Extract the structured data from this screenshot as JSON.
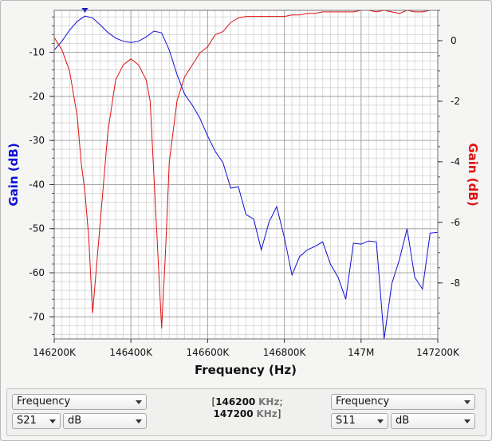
{
  "chart_data": {
    "type": "line",
    "xlabel": "Frequency (Hz)",
    "ylabel_left": "Gain (dB)",
    "ylabel_right": "Gain (dB)",
    "x_ticks": [
      146200,
      146400,
      146600,
      146800,
      147000,
      147200
    ],
    "x_tick_labels": [
      "146200K",
      "146400K",
      "146600K",
      "146800K",
      "147M",
      "147200K"
    ],
    "xlim": [
      146200,
      147200
    ],
    "y_left_ticks": [
      -10,
      -20,
      -30,
      -40,
      -50,
      -60,
      -70
    ],
    "ylim_left": [
      -75,
      -0.5
    ],
    "y_right_ticks": [
      0,
      -2,
      -4,
      -6,
      -8
    ],
    "ylim_right": [
      -9.85,
      1.0
    ],
    "grid": true,
    "marker": {
      "series": "S21",
      "x": 146280
    },
    "series": [
      {
        "name": "S21",
        "axis": "left",
        "color": "#1010d8",
        "x": [
          146200,
          146220,
          146240,
          146260,
          146280,
          146300,
          146320,
          146340,
          146360,
          146380,
          146400,
          146420,
          146440,
          146460,
          146480,
          146500,
          146520,
          146540,
          146560,
          146580,
          146600,
          146620,
          146640,
          146660,
          146680,
          146700,
          146720,
          146740,
          146760,
          146780,
          146800,
          146820,
          146840,
          146860,
          146880,
          146900,
          146920,
          146940,
          146960,
          146980,
          147000,
          147020,
          147040,
          147060,
          147080,
          147100,
          147120,
          147140,
          147160,
          147180,
          147200
        ],
        "y": [
          -9.5,
          -7.5,
          -5.0,
          -3.0,
          -1.8,
          -2.2,
          -3.8,
          -5.5,
          -6.8,
          -7.5,
          -7.8,
          -7.5,
          -6.5,
          -5.2,
          -5.6,
          -9.5,
          -15.0,
          -19.5,
          -22.0,
          -25.0,
          -29.0,
          -32.5,
          -35.0,
          -40.8,
          -40.5,
          -46.8,
          -47.8,
          -54.8,
          -48.5,
          -45.0,
          -52.0,
          -60.5,
          -56.3,
          -54.8,
          -54.0,
          -53.0,
          -58.0,
          -61.0,
          -66.0,
          -53.3,
          -53.5,
          -52.8,
          -53.0,
          -75.0,
          -62.5,
          -57.0,
          -50.0,
          -61.0,
          -63.7,
          -51.0,
          -50.8
        ]
      },
      {
        "name": "S11",
        "axis": "right",
        "color": "#e01010",
        "x": [
          146200,
          146220,
          146240,
          146260,
          146270,
          146280,
          146290,
          146300,
          146320,
          146340,
          146360,
          146380,
          146400,
          146420,
          146440,
          146450,
          146460,
          146470,
          146480,
          146490,
          146500,
          146520,
          146540,
          146560,
          146580,
          146600,
          146620,
          146640,
          146660,
          146680,
          146700,
          146720,
          146740,
          146760,
          146780,
          146800,
          146820,
          146840,
          146860,
          146880,
          146900,
          146920,
          146940,
          146960,
          146980,
          147000,
          147020,
          147040,
          147060,
          147080,
          147100,
          147120,
          147140,
          147160,
          147180,
          147200
        ],
        "y": [
          0.1,
          -0.3,
          -1.0,
          -2.5,
          -4.0,
          -5.0,
          -6.5,
          -9.0,
          -6.0,
          -3.0,
          -1.3,
          -0.8,
          -0.6,
          -0.8,
          -1.3,
          -2.0,
          -4.5,
          -7.0,
          -9.5,
          -7.0,
          -4.0,
          -2.0,
          -1.2,
          -0.8,
          -0.4,
          -0.2,
          0.2,
          0.3,
          0.6,
          0.75,
          0.8,
          0.8,
          0.8,
          0.8,
          0.8,
          0.8,
          0.85,
          0.85,
          0.9,
          0.9,
          0.95,
          0.95,
          0.95,
          0.95,
          0.95,
          1.0,
          1.0,
          0.95,
          1.0,
          0.95,
          0.9,
          1.0,
          0.95,
          0.95,
          1.0,
          1.0
        ]
      }
    ]
  },
  "controls": {
    "left": {
      "mode": "Frequency",
      "param": "S21",
      "unit": "dB"
    },
    "right": {
      "mode": "Frequency",
      "param": "S11",
      "unit": "dB"
    },
    "range": {
      "start_value": "146200",
      "stop_value": "147200",
      "unit": "KHz",
      "open": "[",
      "sep": ";",
      "close": "]"
    }
  },
  "colors": {
    "s21": "#1010d8",
    "s11": "#e01010",
    "grid_major": "#a8a8a8",
    "grid_minor": "#dadada"
  }
}
